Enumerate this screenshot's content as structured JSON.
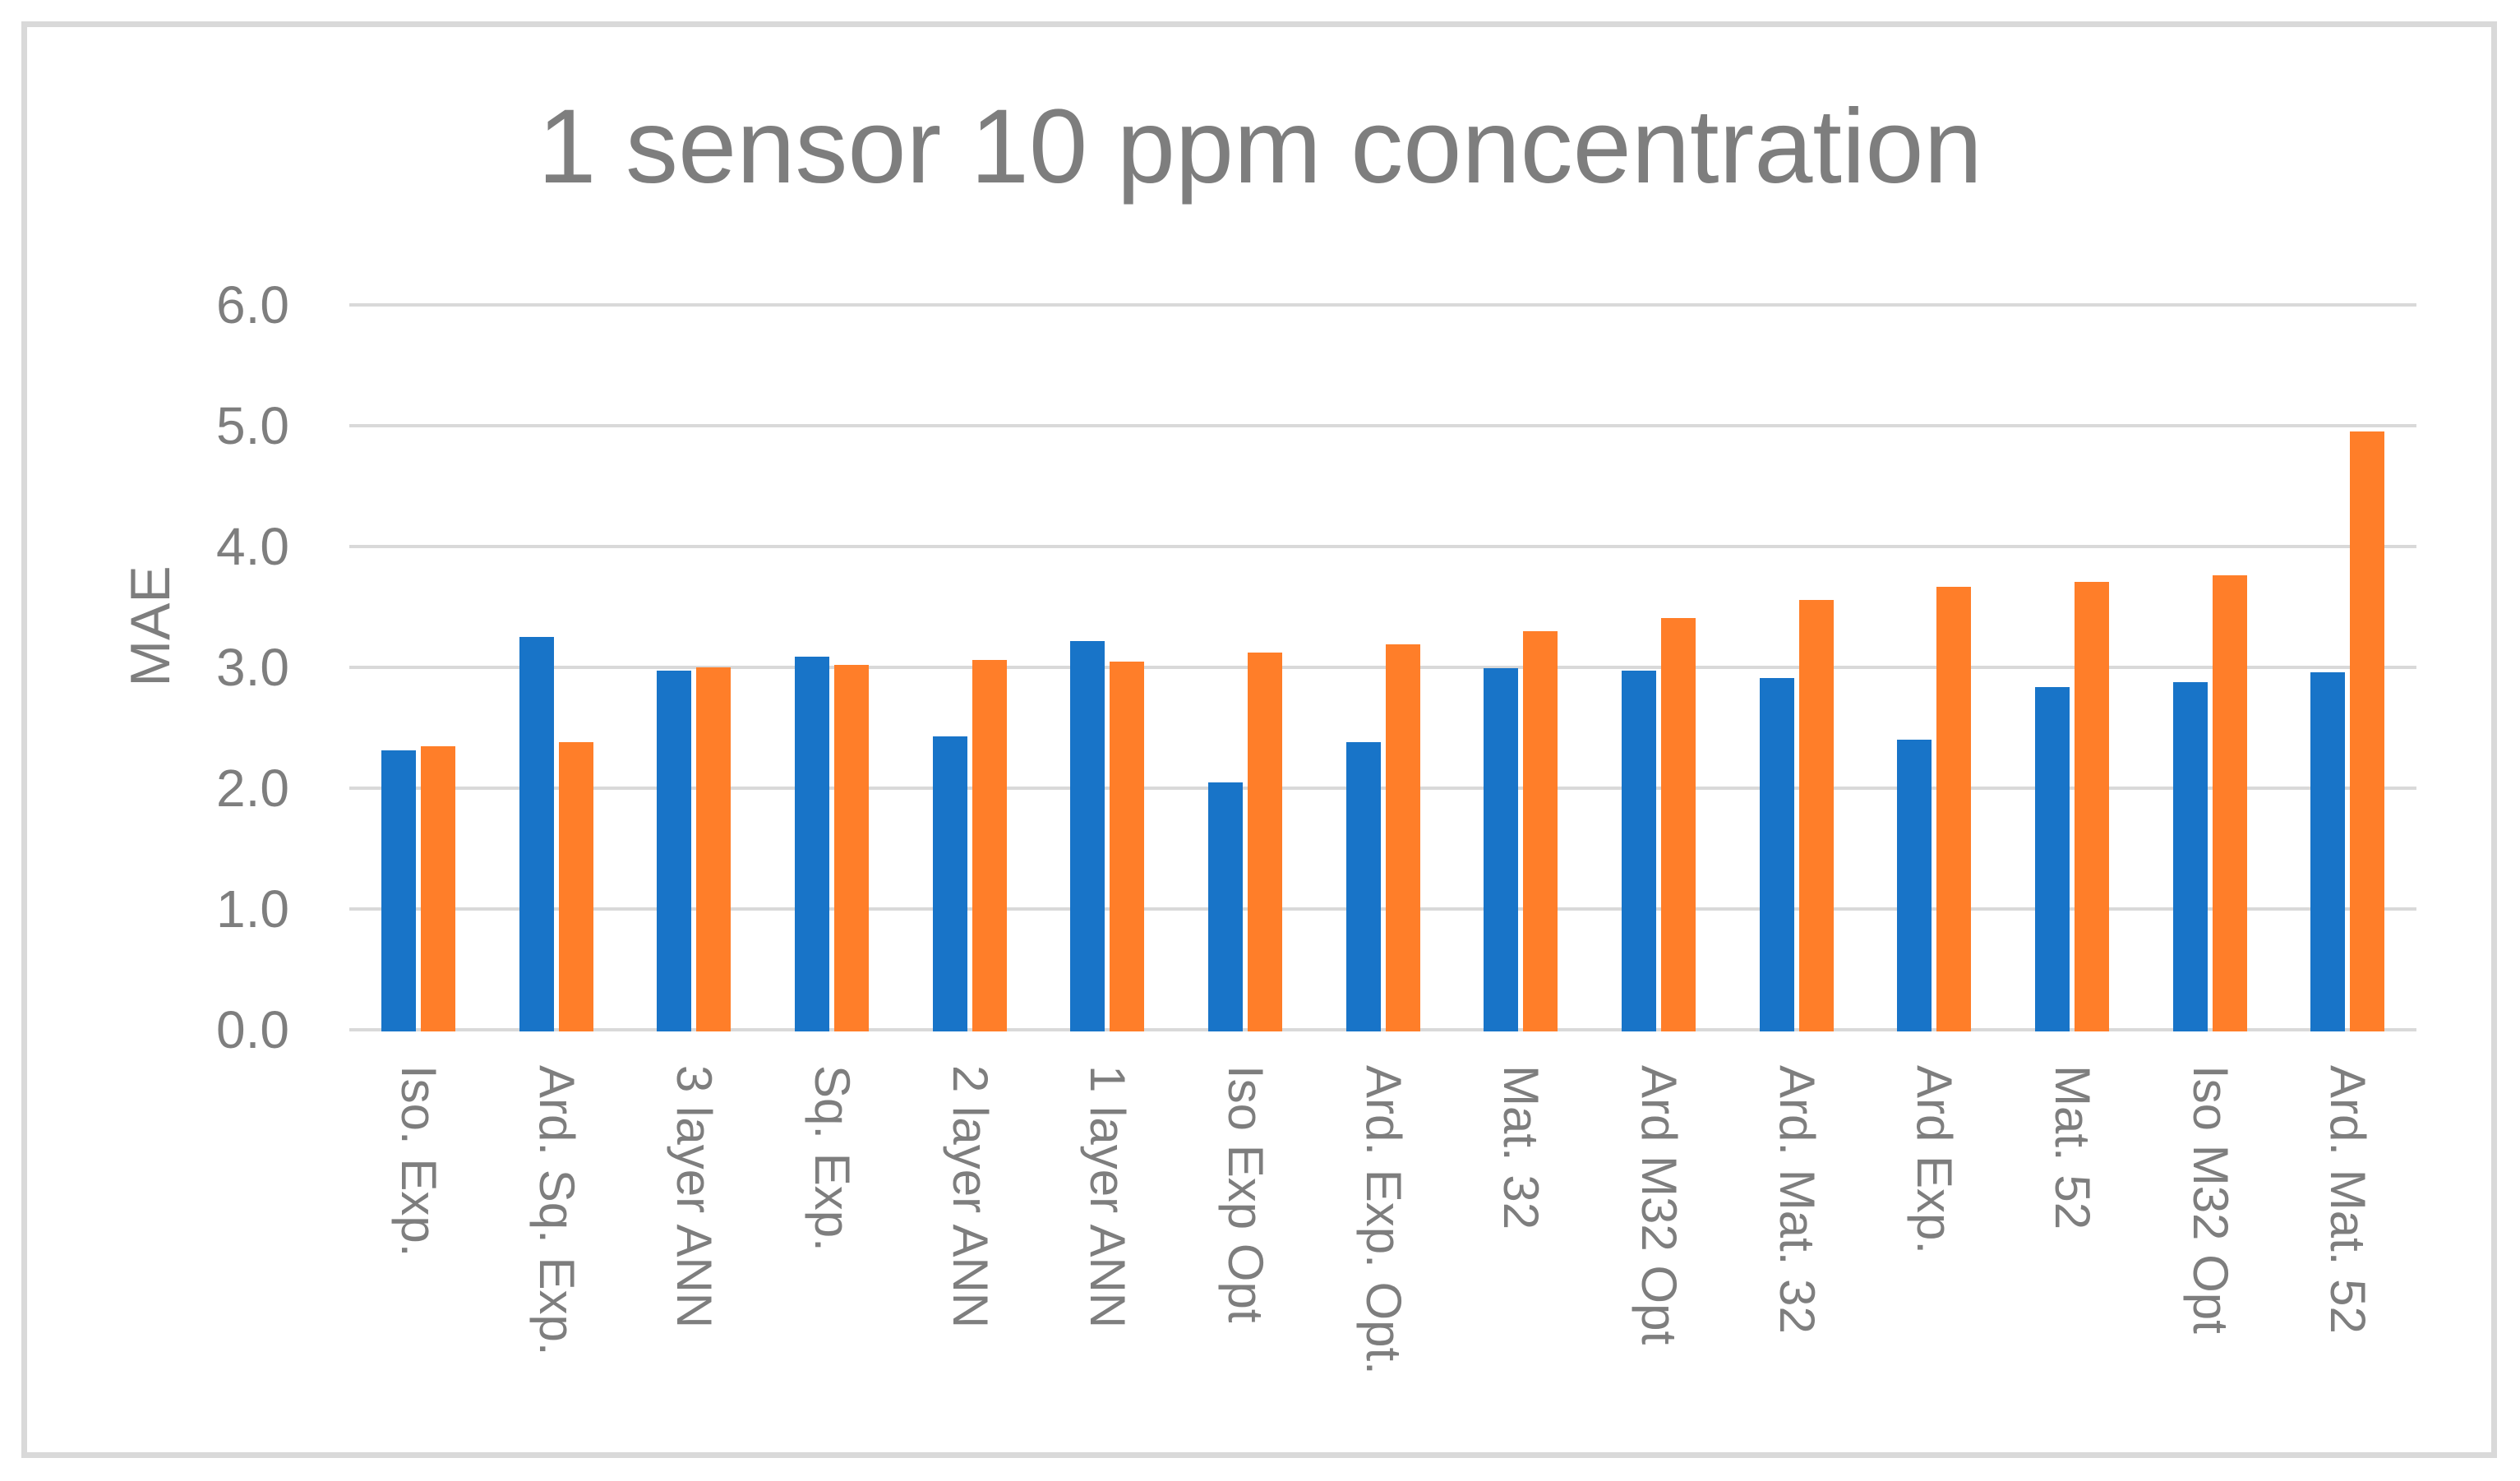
{
  "chart_data": {
    "type": "bar",
    "title": "1 sensor 10 ppm concentration",
    "xlabel": "",
    "ylabel": "MAE",
    "ylim": [
      0,
      6
    ],
    "yticks": [
      0,
      1,
      2,
      3,
      4,
      5,
      6
    ],
    "ytick_labels": [
      "0.0",
      "1.0",
      "2.0",
      "3.0",
      "4.0",
      "5.0",
      "6.0"
    ],
    "grid": true,
    "legend": "none",
    "categories": [
      "Iso. Exp.",
      "Ard. Sq. Exp.",
      "3 layer ANN",
      "Sq. Exp.",
      "2 layer ANN",
      "1 layer ANN",
      "Iso Exp Opt",
      "Ard. Exp. Opt.",
      "Mat. 32",
      "Ard M32 Opt",
      "Ard. Mat. 32",
      "Ard Exp.",
      "Mat. 52",
      "Iso M32 Opt",
      "Ard. Mat. 52"
    ],
    "series": [
      {
        "name": "series-1-blue",
        "color": "#1874C8",
        "values": [
          2.31,
          3.25,
          2.97,
          3.09,
          2.43,
          3.22,
          2.05,
          2.38,
          2.99,
          2.97,
          2.91,
          2.4,
          2.84,
          2.88,
          2.96
        ]
      },
      {
        "name": "series-2-orange",
        "color": "#FF7E29",
        "values": [
          2.35,
          2.38,
          3.0,
          3.02,
          3.06,
          3.05,
          3.12,
          3.19,
          3.3,
          3.41,
          3.56,
          3.67,
          3.71,
          3.76,
          4.95
        ]
      }
    ],
    "colors": {
      "text": "#7E7E7E",
      "gridline": "#D9D9D9",
      "frame_border": "#D9D9D9",
      "background": "#FFFFFF"
    }
  }
}
